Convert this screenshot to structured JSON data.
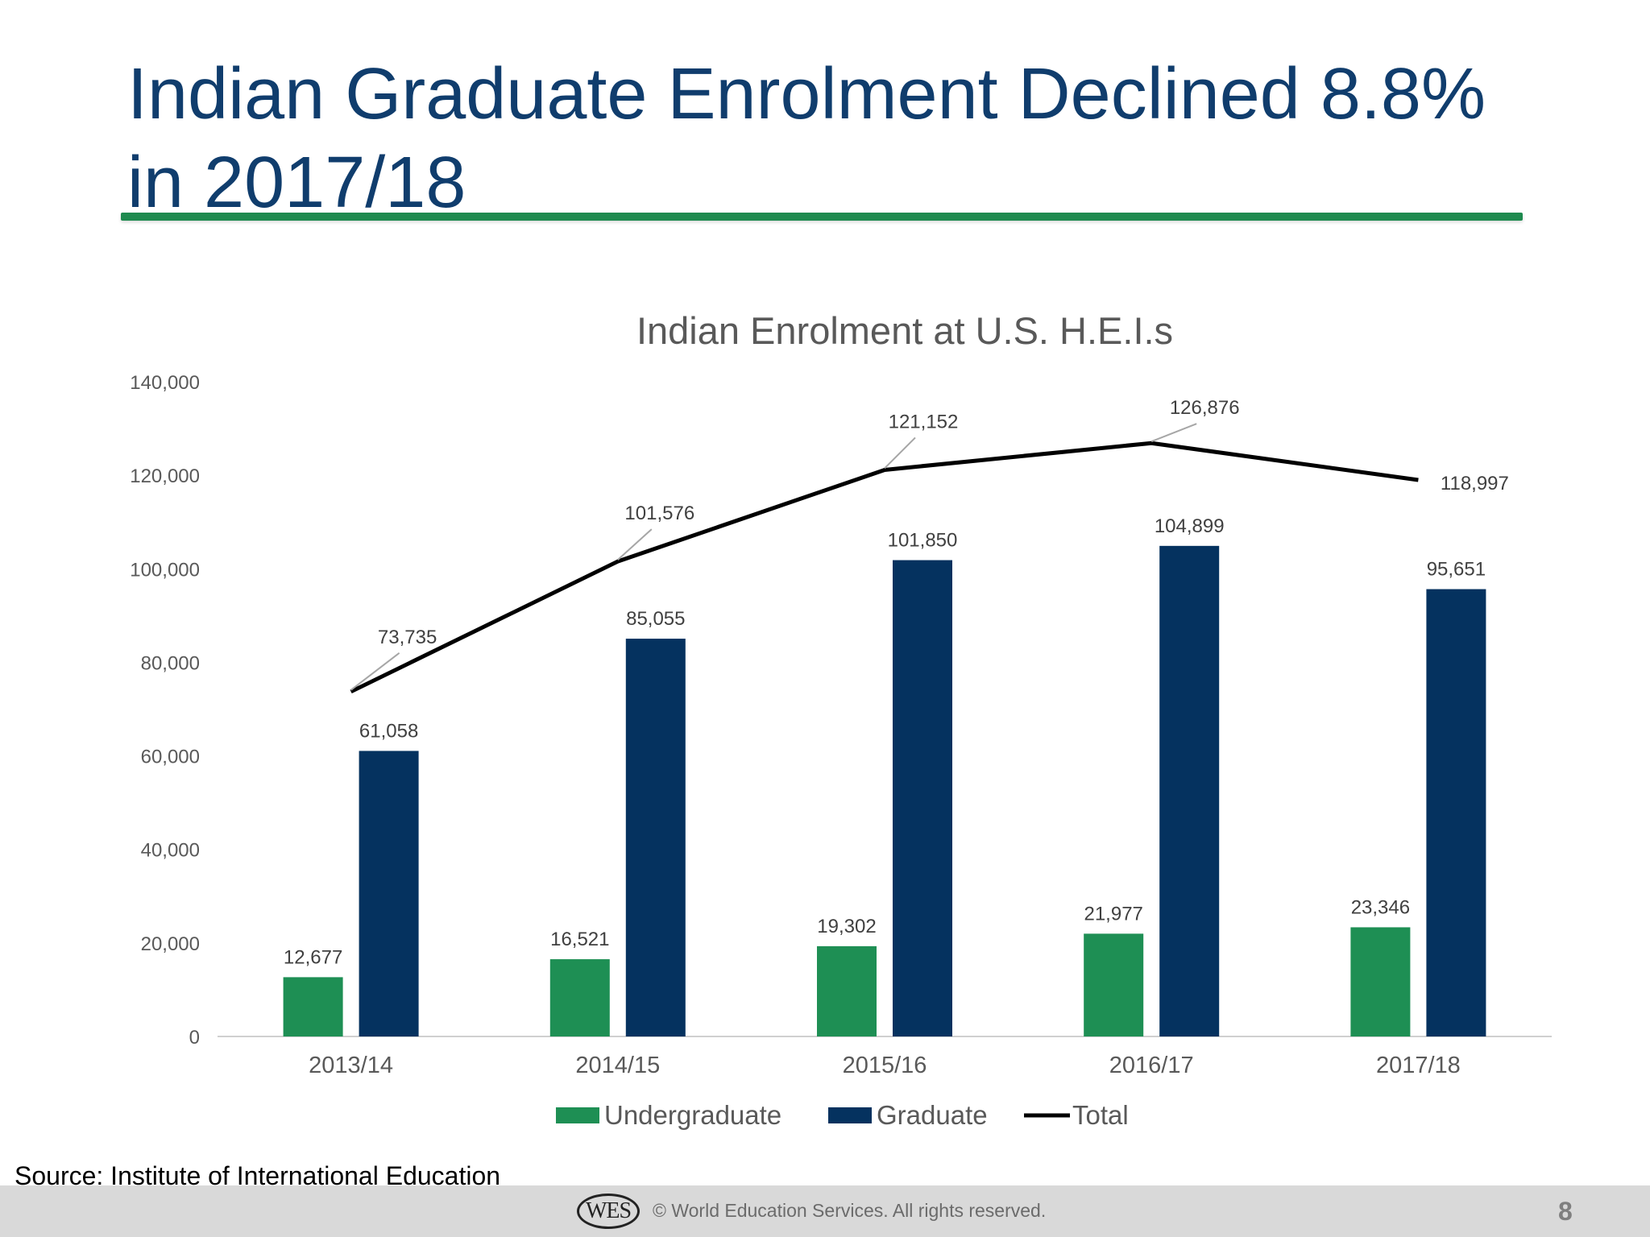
{
  "slide": {
    "title": "Indian Graduate Enrolment Declined 8.8% in 2017/18",
    "source": "Source: Institute of International Education",
    "logo": "WES",
    "copyright": "© World Education Services. All rights reserved.",
    "page_number": "8"
  },
  "colors": {
    "title": "#103d6d",
    "rule": "#1e8a4f",
    "undergraduate": "#1e8f54",
    "graduate": "#05325f",
    "total": "#000000"
  },
  "chart_data": {
    "type": "bar",
    "title": "Indian Enrolment at U.S. H.E.I.s",
    "categories": [
      "2013/14",
      "2014/15",
      "2015/16",
      "2016/17",
      "2017/18"
    ],
    "series": [
      {
        "name": "Undergraduate",
        "kind": "bar",
        "values": [
          12677,
          16521,
          19302,
          21977,
          23346
        ],
        "labels": [
          "12,677",
          "16,521",
          "19,302",
          "21,977",
          "23,346"
        ]
      },
      {
        "name": "Graduate",
        "kind": "bar",
        "values": [
          61058,
          85055,
          101850,
          104899,
          95651
        ],
        "labels": [
          "61,058",
          "85,055",
          "101,850",
          "104,899",
          "95,651"
        ]
      },
      {
        "name": "Total",
        "kind": "line",
        "values": [
          73735,
          101576,
          121152,
          126876,
          118997
        ],
        "labels": [
          "73,735",
          "101,576",
          "121,152",
          "126,876",
          "118,997"
        ]
      }
    ],
    "ylim": [
      0,
      140000
    ],
    "yticks": [
      0,
      20000,
      40000,
      60000,
      80000,
      100000,
      120000,
      140000
    ],
    "ytick_labels": [
      "0",
      "20,000",
      "40,000",
      "60,000",
      "80,000",
      "100,000",
      "120,000",
      "140,000"
    ],
    "xlabel": "",
    "ylabel": "",
    "grid": false,
    "legend": "bottom"
  }
}
